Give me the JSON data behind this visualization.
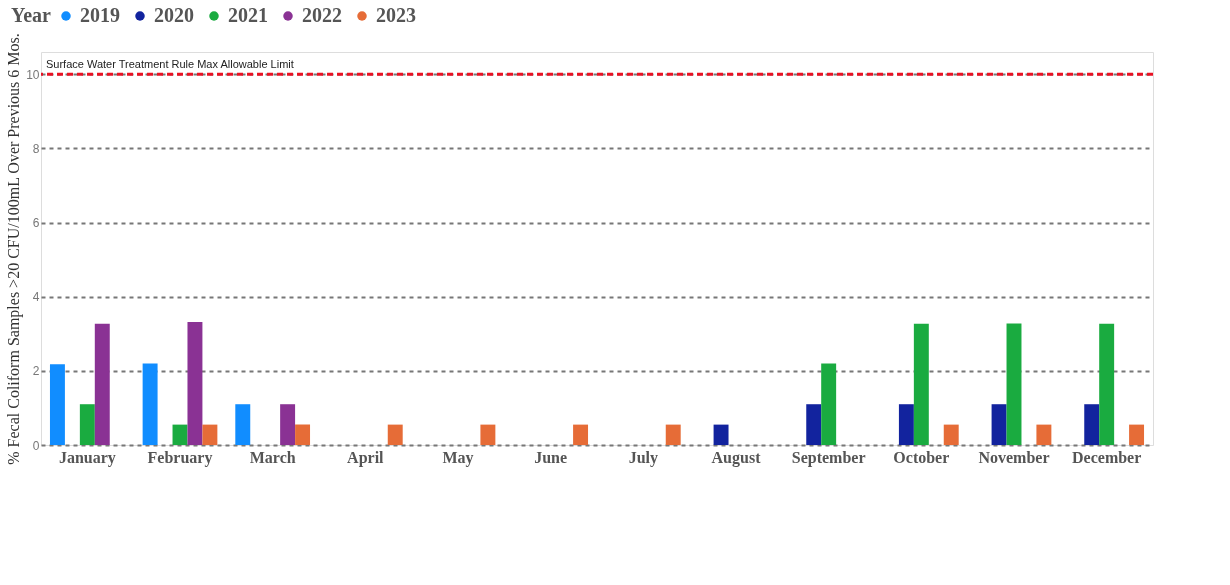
{
  "chart_data": {
    "type": "bar",
    "ylabel": "% Fecal Coliform Samples >20 CFU/100mL Over Previous 6 Mos.",
    "legend_title": "Year",
    "legend": "top left",
    "grid": "y",
    "categories": [
      "January",
      "February",
      "March",
      "April",
      "May",
      "June",
      "July",
      "August",
      "September",
      "October",
      "November",
      "December"
    ],
    "series": [
      {
        "name": "2019",
        "color": "#118dff",
        "values": [
          2.18,
          2.2,
          1.1,
          null,
          null,
          null,
          null,
          null,
          null,
          null,
          null,
          null
        ]
      },
      {
        "name": "2020",
        "color": "#12239e",
        "values": [
          null,
          null,
          null,
          null,
          null,
          null,
          null,
          0.55,
          1.1,
          1.1,
          1.1,
          1.1
        ]
      },
      {
        "name": "2021",
        "color": "#1aab40",
        "values": [
          1.1,
          0.55,
          null,
          null,
          null,
          null,
          null,
          null,
          2.2,
          3.27,
          3.28,
          3.27
        ]
      },
      {
        "name": "2022",
        "color": "#8a3294",
        "values": [
          3.27,
          3.32,
          1.1,
          null,
          null,
          null,
          null,
          null,
          null,
          null,
          null,
          null
        ]
      },
      {
        "name": "2023",
        "color": "#e66c37",
        "values": [
          null,
          0.55,
          0.55,
          0.55,
          0.55,
          0.55,
          0.55,
          null,
          null,
          0.55,
          0.55,
          0.55
        ]
      }
    ],
    "ylim": [
      0,
      10.6
    ],
    "yticks": [
      0,
      2,
      4,
      6,
      8,
      10
    ],
    "ref_lines": [
      {
        "axis": "y",
        "value": 10,
        "label": "Surface Water Treatment Rule Max Allowable Limit",
        "color": "#e81123",
        "line_style": "dashed"
      }
    ]
  }
}
